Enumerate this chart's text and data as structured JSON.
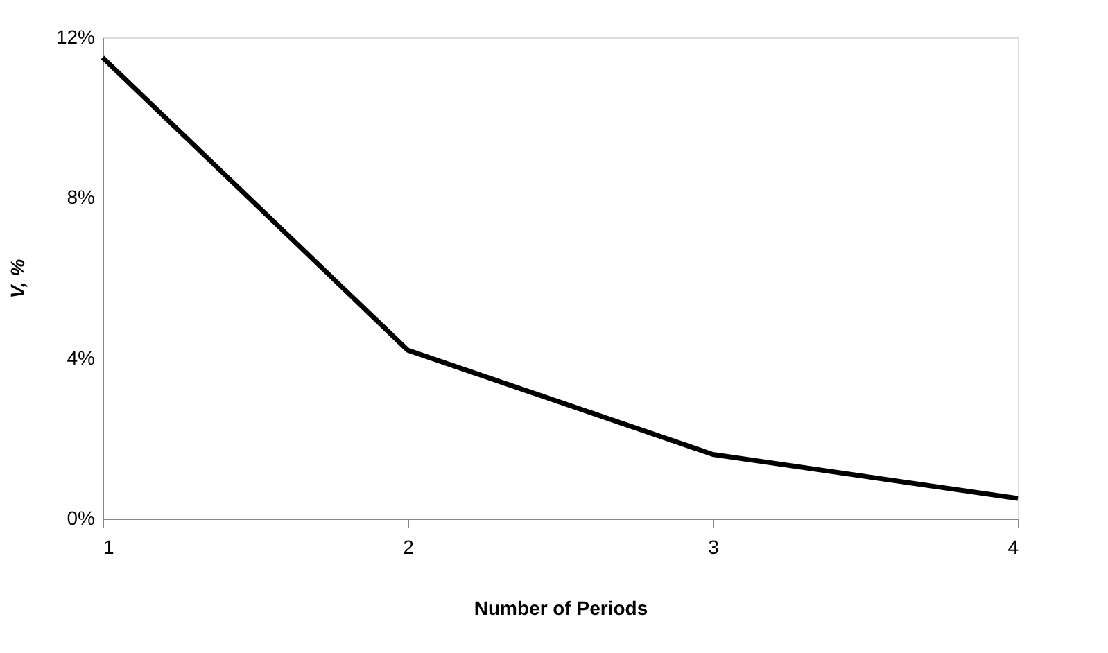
{
  "chart_data": {
    "type": "line",
    "xlabel": "Number of Periods",
    "ylabel": "V, %",
    "x": [
      1,
      2,
      3,
      4
    ],
    "series": [
      {
        "color": "#000000",
        "values": [
          11.5,
          4.2,
          1.6,
          0.5
        ]
      }
    ],
    "xlim": [
      1,
      4
    ],
    "xticks": [
      1,
      2,
      3,
      4
    ],
    "ylim": [
      0,
      12
    ],
    "yticks": [
      {
        "value": 0,
        "label": "0%"
      },
      {
        "value": 4,
        "label": "4%"
      },
      {
        "value": 8,
        "label": "8%"
      },
      {
        "value": 12,
        "label": "12%"
      }
    ],
    "grid": false,
    "legend": false,
    "marker": "none",
    "line_style": "solid"
  }
}
